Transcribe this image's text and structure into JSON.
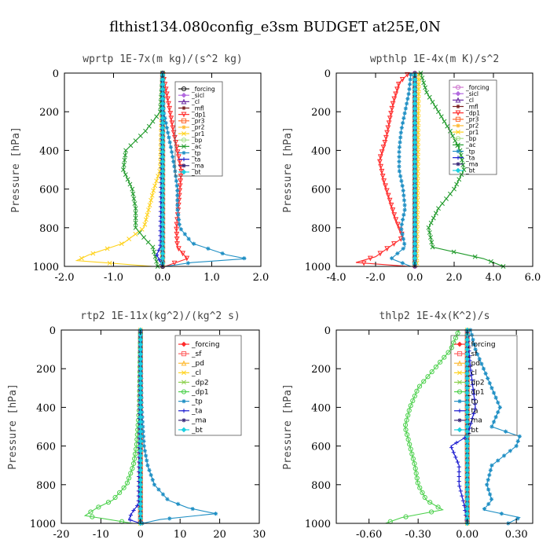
{
  "title": "flthist134.080config_e3sm  BUDGET at25E,0N",
  "chart_data": [
    {
      "type": "line",
      "title": "wprtp  1E-7x(m kg)/(s^2 kg)",
      "ylabel": "Pressure [hPa]",
      "xlim": [
        -2.0,
        2.0
      ],
      "ylim": [
        1000,
        0
      ],
      "xticks": [
        -2.0,
        -1.0,
        0.0,
        1.0,
        2.0
      ],
      "xtick_labels": [
        "-2.0",
        "-1.0",
        "0.0",
        "1.0",
        "2.0"
      ],
      "yticks": [
        0,
        200,
        400,
        600,
        800,
        1000
      ],
      "ytick_labels": [
        "0",
        "200",
        "400",
        "600",
        "800",
        "1000"
      ],
      "legend_position": "top-right",
      "series": [
        {
          "name": "_forcing",
          "color": "#222222",
          "marker": "circle",
          "p": [
            0,
            1000
          ],
          "x": [
            0,
            0
          ]
        },
        {
          "name": "_sicl",
          "color": "#b36ae0",
          "marker": "diamond",
          "p": [
            0,
            1000
          ],
          "x": [
            0,
            0
          ]
        },
        {
          "name": "_cl",
          "color": "#6a2aa0",
          "marker": "triangle",
          "p": [
            0,
            1000
          ],
          "x": [
            0,
            0
          ]
        },
        {
          "name": "_mfl",
          "color": "#7a2020",
          "marker": "star",
          "p": [
            0,
            1000
          ],
          "x": [
            0,
            0
          ]
        },
        {
          "name": "_dp1",
          "color": "#ff2a2a",
          "marker": "triangle-down",
          "p": [
            0,
            100,
            200,
            300,
            400,
            500,
            600,
            700,
            800,
            900,
            960,
            1000
          ],
          "x": [
            0,
            0.08,
            0.15,
            0.22,
            0.3,
            0.38,
            0.35,
            0.32,
            0.28,
            0.3,
            0.5,
            0.05
          ]
        },
        {
          "name": "_pr3",
          "color": "#ff6a30",
          "marker": "square",
          "p": [
            0,
            1000
          ],
          "x": [
            0,
            0
          ]
        },
        {
          "name": "_pr2",
          "color": "#ffbb33",
          "marker": "star",
          "p": [
            0,
            1000
          ],
          "x": [
            0,
            0
          ]
        },
        {
          "name": "_pr1",
          "color": "#ffd21a",
          "marker": "x",
          "p": [
            0,
            500,
            600,
            700,
            800,
            880,
            940,
            970,
            1000
          ],
          "x": [
            0,
            -0.05,
            -0.18,
            -0.28,
            -0.38,
            -0.8,
            -1.5,
            -1.75,
            -0.2
          ]
        },
        {
          "name": "_bp",
          "color": "#a8e08a",
          "marker": "circle",
          "p": [
            0,
            1000
          ],
          "x": [
            0,
            0
          ]
        },
        {
          "name": "_ac",
          "color": "#1f9a2a",
          "marker": "x",
          "p": [
            0,
            200,
            300,
            400,
            500,
            600,
            700,
            800,
            860,
            900,
            1000
          ],
          "x": [
            0,
            -0.05,
            -0.35,
            -0.75,
            -0.8,
            -0.62,
            -0.55,
            -0.55,
            -0.35,
            -0.2,
            -0.1
          ]
        },
        {
          "name": "_tp",
          "color": "#1f8fc4",
          "marker": "star",
          "p": [
            0,
            200,
            300,
            400,
            500,
            600,
            700,
            800,
            880,
            940,
            960,
            980,
            1000
          ],
          "x": [
            0,
            0.02,
            0.1,
            0.18,
            0.25,
            0.3,
            0.3,
            0.35,
            0.6,
            1.3,
            1.7,
            0.6,
            0.05
          ]
        },
        {
          "name": "_ta",
          "color": "#1a1ad0",
          "marker": "plus",
          "p": [
            0,
            900,
            940,
            1000
          ],
          "x": [
            0,
            -0.05,
            -0.12,
            0
          ]
        },
        {
          "name": "_ma",
          "color": "#3a2a7a",
          "marker": "star",
          "p": [
            0,
            1000
          ],
          "x": [
            0,
            0
          ]
        },
        {
          "name": "_bt",
          "color": "#1ad0e0",
          "marker": "diamond",
          "p": [
            0,
            1000
          ],
          "x": [
            0,
            0
          ]
        }
      ]
    },
    {
      "type": "line",
      "title": "wpthlp  1E-4x(m K)/s^2",
      "ylabel": "Pressure [hPa]",
      "xlim": [
        -4.0,
        6.0
      ],
      "ylim": [
        1000,
        0
      ],
      "xticks": [
        -4.0,
        -2.0,
        0.0,
        2.0,
        4.0,
        6.0
      ],
      "xtick_labels": [
        "-4.0",
        "-2.0",
        "0.0",
        "2.0",
        "4.0",
        "6.0"
      ],
      "yticks": [
        0,
        200,
        400,
        600,
        800,
        1000
      ],
      "ytick_labels": [
        "0",
        "200",
        "400",
        "600",
        "800",
        "1000"
      ],
      "legend_position": "top-right",
      "series": [
        {
          "name": "_forcing",
          "color": "#d07ad0",
          "marker": "circle",
          "p": [
            0,
            1000
          ],
          "x": [
            0,
            0
          ]
        },
        {
          "name": "_sicl",
          "color": "#b36ae0",
          "marker": "diamond",
          "p": [
            0,
            1000
          ],
          "x": [
            0,
            0
          ]
        },
        {
          "name": "_cl",
          "color": "#6a2aa0",
          "marker": "triangle",
          "p": [
            0,
            1000
          ],
          "x": [
            0,
            0
          ]
        },
        {
          "name": "_mfl",
          "color": "#7a2020",
          "marker": "star",
          "p": [
            0,
            1000
          ],
          "x": [
            0,
            0
          ]
        },
        {
          "name": "_dp1",
          "color": "#ff2a2a",
          "marker": "triangle-down",
          "p": [
            0,
            50,
            150,
            250,
            350,
            450,
            550,
            650,
            750,
            850,
            950,
            980,
            1000
          ],
          "x": [
            -0.3,
            -0.8,
            -1.1,
            -1.3,
            -1.5,
            -1.8,
            -1.6,
            -1.3,
            -1.0,
            -0.6,
            -2.0,
            -3.0,
            -0.3
          ]
        },
        {
          "name": "_pr3",
          "color": "#ff6a30",
          "marker": "square",
          "p": [
            0,
            1000
          ],
          "x": [
            0,
            0
          ]
        },
        {
          "name": "_pr2",
          "color": "#ffbb33",
          "marker": "star",
          "p": [
            0,
            1000
          ],
          "x": [
            0,
            0
          ]
        },
        {
          "name": "_pr1",
          "color": "#ffd21a",
          "marker": "x",
          "p": [
            0,
            1000
          ],
          "x": [
            0.2,
            0.1
          ]
        },
        {
          "name": "_bp",
          "color": "#a8e08a",
          "marker": "circle",
          "p": [
            0,
            1000
          ],
          "x": [
            0,
            0
          ]
        },
        {
          "name": "_ac",
          "color": "#1f9a2a",
          "marker": "x",
          "p": [
            0,
            100,
            200,
            300,
            400,
            500,
            600,
            700,
            800,
            900,
            960,
            1000
          ],
          "x": [
            0.3,
            0.6,
            1.2,
            1.8,
            2.3,
            2.5,
            2.0,
            1.2,
            0.7,
            0.9,
            3.5,
            4.5
          ]
        },
        {
          "name": "_tp",
          "color": "#1f8fc4",
          "marker": "star",
          "p": [
            0,
            100,
            200,
            300,
            400,
            500,
            600,
            700,
            800,
            900,
            960,
            1000
          ],
          "x": [
            -0.2,
            -0.3,
            -0.5,
            -0.7,
            -0.8,
            -0.8,
            -0.6,
            -0.5,
            -0.7,
            -0.5,
            -1.2,
            -0.2
          ]
        },
        {
          "name": "_ta",
          "color": "#1a1ad0",
          "marker": "plus",
          "p": [
            0,
            1000
          ],
          "x": [
            0,
            0
          ]
        },
        {
          "name": "_ma",
          "color": "#3a2a7a",
          "marker": "star",
          "p": [
            0,
            1000
          ],
          "x": [
            0,
            0
          ]
        },
        {
          "name": "_bt",
          "color": "#1ad0e0",
          "marker": "diamond",
          "p": [
            0,
            1000
          ],
          "x": [
            0,
            0
          ]
        }
      ]
    },
    {
      "type": "line",
      "title": "rtp2  1E-11x(kg^2)/(kg^2 s)",
      "ylabel": "Pressure [hPa]",
      "xlim": [
        -20,
        30
      ],
      "ylim": [
        1000,
        0
      ],
      "xticks": [
        -20,
        -10,
        0,
        10,
        20,
        30
      ],
      "xtick_labels": [
        "-20",
        "-10",
        "0",
        "10",
        "20",
        "30"
      ],
      "yticks": [
        0,
        200,
        400,
        600,
        800,
        1000
      ],
      "ytick_labels": [
        "0",
        "200",
        "400",
        "600",
        "800",
        "1000"
      ],
      "legend_position": "top-right",
      "series": [
        {
          "name": "_forcing",
          "color": "#ff2a2a",
          "marker": "diamond",
          "p": [
            0,
            1000
          ],
          "x": [
            0,
            0
          ]
        },
        {
          "name": "_sf",
          "color": "#ff6060",
          "marker": "square",
          "p": [
            0,
            1000
          ],
          "x": [
            0,
            0
          ]
        },
        {
          "name": "_pd",
          "color": "#ffbb33",
          "marker": "triangle",
          "p": [
            0,
            1000
          ],
          "x": [
            0,
            0
          ]
        },
        {
          "name": "_cl",
          "color": "#ffd21a",
          "marker": "x",
          "p": [
            0,
            1000
          ],
          "x": [
            0,
            0
          ]
        },
        {
          "name": "_dp2",
          "color": "#8ad04a",
          "marker": "x",
          "p": [
            0,
            1000
          ],
          "x": [
            0,
            0
          ]
        },
        {
          "name": "_dp1",
          "color": "#4ad04a",
          "marker": "circle",
          "p": [
            0,
            400,
            600,
            700,
            800,
            880,
            920,
            960,
            1000
          ],
          "x": [
            0,
            -0.3,
            -1.0,
            -1.8,
            -3.5,
            -7.0,
            -11.0,
            -14.0,
            -2.0
          ]
        },
        {
          "name": "_tp",
          "color": "#1f8fc4",
          "marker": "star",
          "p": [
            0,
            400,
            600,
            700,
            800,
            880,
            920,
            950,
            980,
            1000
          ],
          "x": [
            0,
            0.3,
            0.9,
            1.8,
            3.5,
            7.0,
            12.0,
            19.0,
            5.0,
            0.5
          ]
        },
        {
          "name": "_ta",
          "color": "#1a1ad0",
          "marker": "plus",
          "p": [
            0,
            900,
            940,
            980,
            1000
          ],
          "x": [
            0,
            -0.5,
            -2.0,
            -3.0,
            0
          ]
        },
        {
          "name": "_ma",
          "color": "#3a2a7a",
          "marker": "star",
          "p": [
            0,
            1000
          ],
          "x": [
            0,
            0
          ]
        },
        {
          "name": "_bt",
          "color": "#1ad0e0",
          "marker": "diamond",
          "p": [
            0,
            1000
          ],
          "x": [
            0,
            0
          ]
        }
      ]
    },
    {
      "type": "line",
      "title": "thlp2  1E-4x(K^2)/s",
      "ylabel": "Pressure [hPa]",
      "xlim": [
        -0.8,
        0.4
      ],
      "ylim": [
        1000,
        0
      ],
      "xticks": [
        -0.6,
        -0.3,
        0.0,
        0.3
      ],
      "xtick_labels": [
        "-0.60",
        "-0.30",
        "0.00",
        "0.30"
      ],
      "yticks": [
        0,
        200,
        400,
        600,
        800,
        1000
      ],
      "ytick_labels": [
        "0",
        "200",
        "400",
        "600",
        "800",
        "1000"
      ],
      "legend_position": "top-right",
      "series": [
        {
          "name": "_forcing",
          "color": "#ff2a2a",
          "marker": "diamond",
          "p": [
            0,
            1000
          ],
          "x": [
            0,
            0
          ]
        },
        {
          "name": "_sf",
          "color": "#ff6060",
          "marker": "square",
          "p": [
            0,
            1000
          ],
          "x": [
            0,
            0
          ]
        },
        {
          "name": "_pd",
          "color": "#ffbb33",
          "marker": "triangle",
          "p": [
            0,
            1000
          ],
          "x": [
            0,
            0
          ]
        },
        {
          "name": "_cl",
          "color": "#ffd21a",
          "marker": "x",
          "p": [
            0,
            1000
          ],
          "x": [
            0,
            0
          ]
        },
        {
          "name": "_dp2",
          "color": "#8ad04a",
          "marker": "x",
          "p": [
            0,
            1000
          ],
          "x": [
            0,
            0
          ]
        },
        {
          "name": "_dp1",
          "color": "#4ad04a",
          "marker": "circle",
          "p": [
            0,
            100,
            200,
            300,
            400,
            500,
            600,
            700,
            800,
            880,
            930,
            970,
            1000
          ],
          "x": [
            -0.05,
            -0.1,
            -0.2,
            -0.3,
            -0.35,
            -0.38,
            -0.35,
            -0.32,
            -0.3,
            -0.25,
            -0.15,
            -0.4,
            -0.5
          ]
        },
        {
          "name": "_tp",
          "color": "#1f8fc4",
          "marker": "star",
          "p": [
            0,
            100,
            200,
            300,
            400,
            500,
            550,
            600,
            700,
            800,
            880,
            930,
            970,
            1000
          ],
          "x": [
            0.02,
            0.05,
            0.1,
            0.15,
            0.2,
            0.15,
            0.32,
            0.3,
            0.15,
            0.12,
            0.15,
            0.1,
            0.32,
            0.25
          ]
        },
        {
          "name": "_ta",
          "color": "#1a1ad0",
          "marker": "plus",
          "p": [
            0,
            200,
            400,
            550,
            600,
            700,
            800,
            900,
            1000
          ],
          "x": [
            0,
            0.02,
            0.05,
            0.0,
            -0.1,
            -0.05,
            -0.05,
            -0.02,
            0
          ]
        },
        {
          "name": "_ma",
          "color": "#3a2a7a",
          "marker": "star",
          "p": [
            0,
            1000
          ],
          "x": [
            0,
            0
          ]
        },
        {
          "name": "_bt",
          "color": "#1ad0e0",
          "marker": "diamond",
          "p": [
            0,
            1000
          ],
          "x": [
            0,
            0
          ]
        }
      ]
    }
  ]
}
